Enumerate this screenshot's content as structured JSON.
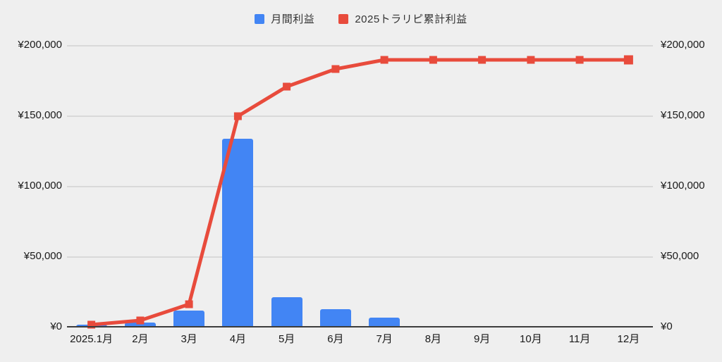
{
  "chart_data": {
    "type": "bar",
    "subtype": "combo-bar-line",
    "title": "",
    "categories": [
      "2025.1月",
      "2月",
      "3月",
      "4月",
      "5月",
      "6月",
      "7月",
      "8月",
      "9月",
      "10月",
      "11月",
      "12月"
    ],
    "series": [
      {
        "name": "月間利益",
        "type": "bar",
        "color": "#4285f4",
        "values": [
          1500,
          3000,
          11500,
          133500,
          21000,
          12500,
          6500,
          0,
          0,
          0,
          0,
          0
        ]
      },
      {
        "name": "2025トラリピ累計利益",
        "type": "line",
        "color": "#e84b3c",
        "marker": "square",
        "values": [
          1500,
          4500,
          16000,
          149500,
          170500,
          183000,
          189500,
          189500,
          189500,
          189500,
          189500,
          189500
        ]
      }
    ],
    "xlabel": "",
    "ylabel": "",
    "ylim": [
      0,
      200000
    ],
    "y_ticks": [
      {
        "value": 0,
        "label": "¥0"
      },
      {
        "value": 50000,
        "label": "¥50,000"
      },
      {
        "value": 100000,
        "label": "¥100,000"
      },
      {
        "value": 150000,
        "label": "¥150,000"
      },
      {
        "value": 200000,
        "label": "¥200,000"
      }
    ],
    "y_axis_sides": "both",
    "grid": true,
    "legend_position": "top-center",
    "background_color": "#efefef",
    "gridline_color": "#d9d9d9",
    "axis_line_color": "#3c3c3c"
  },
  "legend": {
    "items": [
      {
        "label": "月間利益",
        "color": "#4285f4"
      },
      {
        "label": "2025トラリピ累計利益",
        "color": "#e84b3c"
      }
    ]
  }
}
